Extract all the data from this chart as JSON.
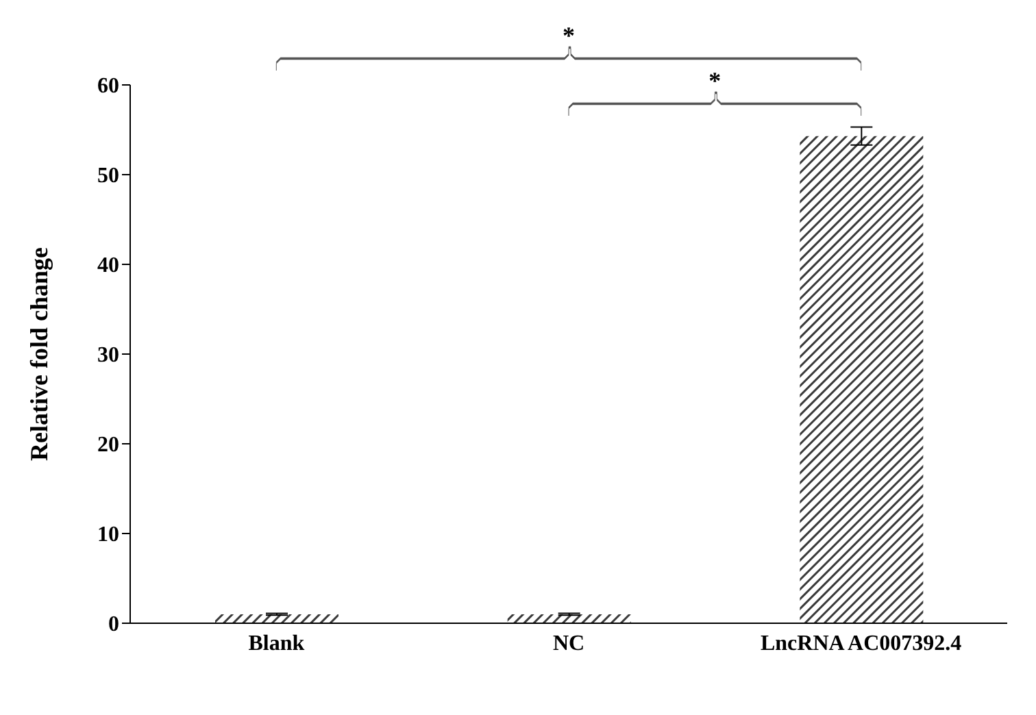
{
  "chart_data": {
    "type": "bar",
    "ylabel": "Relative fold change",
    "categories": [
      "Blank",
      "NC",
      "LncRNA AC007392.4"
    ],
    "series": [
      {
        "color": "#3a3a3a",
        "values": [
          1,
          1,
          54.3
        ],
        "errors": [
          0.1,
          0.1,
          1
        ]
      }
    ],
    "ylim": [
      0,
      60
    ],
    "yticks": [
      0,
      10,
      20,
      30,
      40,
      50,
      60
    ],
    "grid": false,
    "legend": false,
    "annotations": [
      "*",
      "*"
    ]
  }
}
